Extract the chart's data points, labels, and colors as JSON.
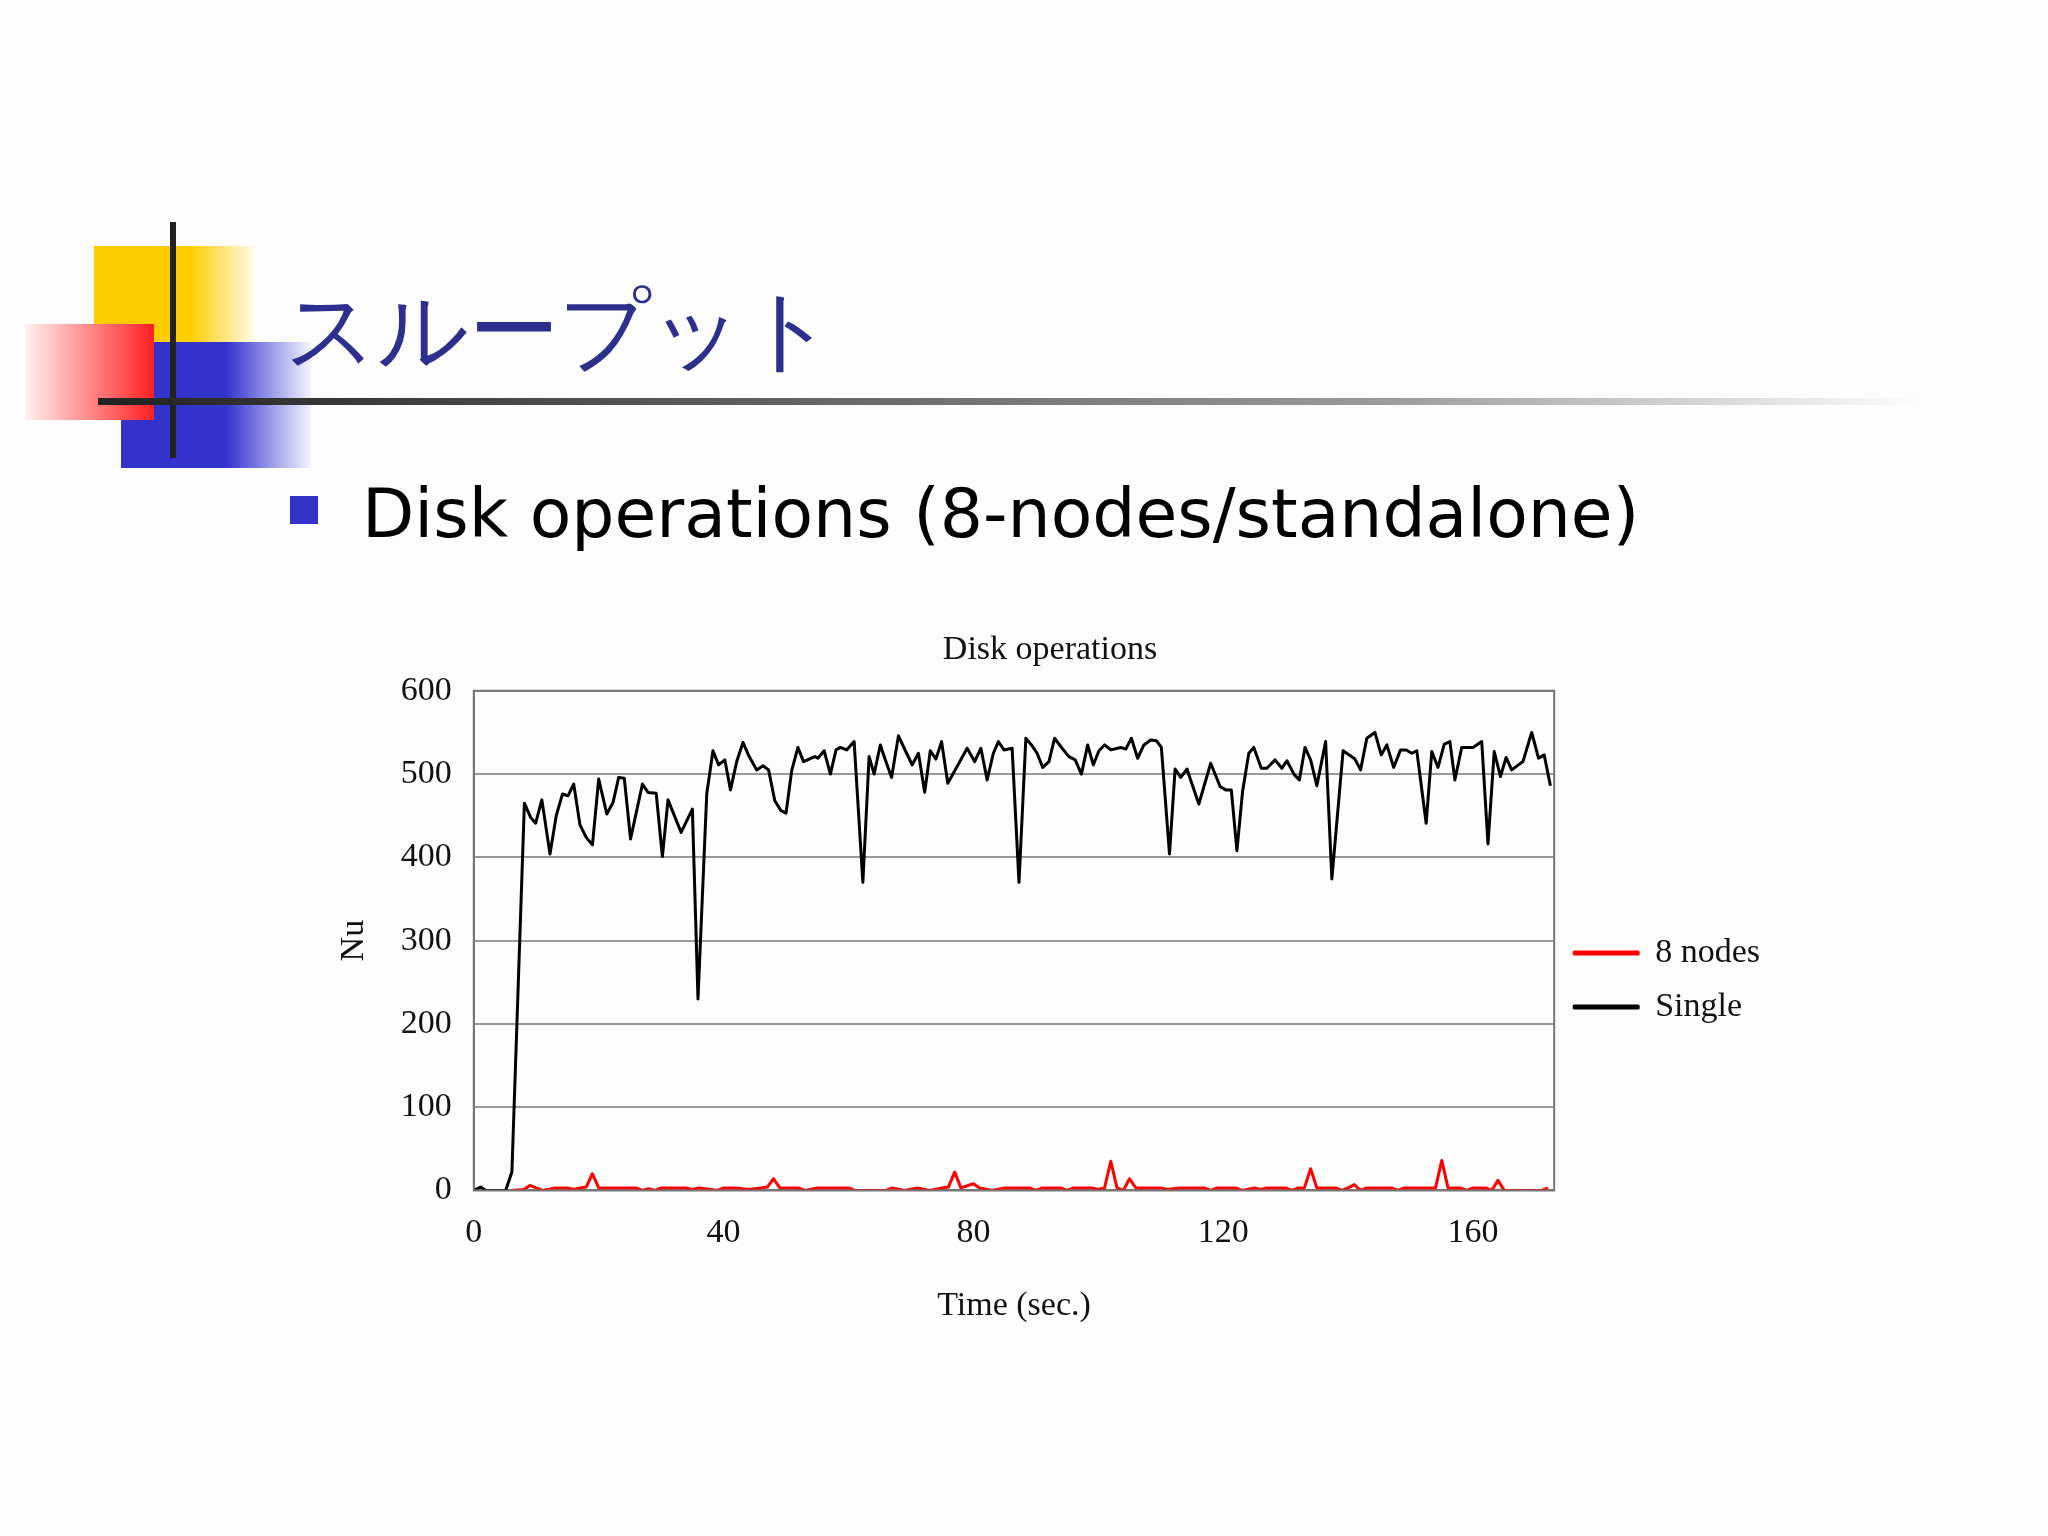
{
  "chart_data": {
    "type": "line",
    "title": "スループット",
    "subtitle": "Disk operations (8-nodes/standalone)",
    "annotations": [
      "Disk operations"
    ],
    "xlabel": "Time (sec.)",
    "ylabel": "Nu",
    "xlim": [
      0,
      173
    ],
    "xticks": [
      0,
      40,
      80,
      120,
      160
    ],
    "ylim": [
      0,
      600
    ],
    "yticks": [
      0,
      100,
      200,
      300,
      400,
      500,
      600
    ],
    "grid": "y",
    "legend": "right",
    "marker": "none",
    "line_style": "solid",
    "series": [
      {
        "name": "8 nodes",
        "color": "#ff0000",
        "x": [
          6,
          8,
          9,
          10,
          11,
          13,
          15,
          16,
          17,
          18,
          19,
          20,
          24,
          26,
          27,
          28,
          29,
          30,
          34,
          35,
          36,
          38,
          39,
          40,
          42,
          44,
          46,
          47,
          48,
          49,
          52,
          53,
          55,
          60,
          61,
          66,
          67,
          69,
          71,
          73,
          75,
          76,
          77,
          78,
          80,
          81,
          83,
          85,
          89,
          90,
          91,
          94,
          95,
          96,
          99,
          100,
          101,
          102,
          103,
          104,
          105,
          106,
          110,
          111,
          113,
          117,
          118,
          119,
          122,
          123,
          125,
          126,
          127,
          130,
          131,
          132,
          133,
          134,
          135,
          138,
          139,
          140,
          141,
          142,
          143,
          147,
          148,
          149,
          153,
          154,
          155,
          156,
          158,
          159,
          160,
          162,
          163,
          164,
          165,
          171,
          172
        ],
        "values": [
          0,
          1,
          6,
          3,
          0,
          3,
          3,
          1,
          3,
          4,
          20,
          3,
          3,
          3,
          0,
          2,
          0,
          3,
          3,
          1,
          3,
          1,
          0,
          3,
          3,
          1,
          3,
          4,
          14,
          3,
          3,
          0,
          3,
          3,
          0,
          0,
          3,
          0,
          3,
          0,
          3,
          4,
          22,
          3,
          8,
          3,
          0,
          3,
          3,
          0,
          3,
          3,
          0,
          3,
          3,
          1,
          3,
          35,
          3,
          0,
          14,
          3,
          3,
          1,
          3,
          3,
          0,
          3,
          3,
          0,
          3,
          1,
          3,
          3,
          0,
          3,
          3,
          26,
          3,
          3,
          0,
          3,
          7,
          0,
          3,
          3,
          0,
          3,
          3,
          3,
          36,
          3,
          3,
          0,
          3,
          3,
          0,
          12,
          0,
          0,
          3
        ]
      },
      {
        "name": "Single",
        "color": "#000000",
        "x": [
          0,
          1.1,
          1.9,
          5.1,
          6.1,
          8.1,
          9.1,
          9.9,
          10.9,
          12.2,
          13.2,
          14.2,
          15.1,
          16,
          17,
          18,
          19,
          20,
          21.3,
          22.3,
          23.2,
          24.1,
          25.1,
          27,
          27.9,
          29.2,
          30.2,
          31.1,
          33.2,
          35,
          35.9,
          37.3,
          38.3,
          39.2,
          40.2,
          41.1,
          42.1,
          43.1,
          44.1,
          45.3,
          46.3,
          47.2,
          48.2,
          49.2,
          50,
          50.9,
          51.9,
          52.8,
          54.6,
          55.1,
          56.1,
          57.1,
          58,
          58.7,
          59.7,
          60.9,
          62.3,
          63.3,
          64.1,
          65.1,
          65.9,
          66.9,
          68,
          69.3,
          70.2,
          71.2,
          72.2,
          73.1,
          74,
          74.9,
          75.9,
          77.3,
          79,
          80.2,
          81.2,
          82.2,
          83.2,
          84,
          84.9,
          86.2,
          87.3,
          88.4,
          89.3,
          90.2,
          91.1,
          92.1,
          93,
          94.2,
          95.3,
          96.3,
          97.3,
          98.3,
          99.2,
          100.1,
          101,
          102,
          103.6,
          104.4,
          105.3,
          106.3,
          107.3,
          108.4,
          109.3,
          110.1,
          111.4,
          112.3,
          113.2,
          114.2,
          115.1,
          116.1,
          118,
          119.5,
          120.4,
          121.3,
          122.2,
          123.1,
          124.1,
          124.9,
          126.1,
          127,
          128.3,
          129.4,
          130.2,
          131.4,
          132.2,
          133.1,
          134,
          135,
          136.4,
          137.4,
          139.2,
          141.1,
          142,
          143,
          144.3,
          145.3,
          146.2,
          147.3,
          148.4,
          149.3,
          150.2,
          151,
          152.5,
          153.4,
          154.4,
          155.4,
          156.3,
          157.1,
          158.2,
          160,
          161.4,
          162.4,
          163.4,
          164.4,
          165.3,
          166.2,
          168,
          169.4,
          170.5,
          171.4,
          172.4
        ],
        "values": [
          0,
          4,
          0,
          0,
          22,
          465,
          448,
          441,
          469,
          404,
          450,
          476,
          474,
          488,
          439,
          424,
          415,
          494,
          452,
          466,
          496,
          495,
          422,
          488,
          478,
          477,
          401,
          469,
          430,
          458,
          230,
          476,
          528,
          511,
          517,
          481,
          515,
          538,
          521,
          505,
          510,
          505,
          468,
          456,
          453,
          504,
          532,
          515,
          521,
          519,
          528,
          500,
          529,
          532,
          529,
          539,
          370,
          521,
          500,
          535,
          517,
          496,
          546,
          525,
          511,
          525,
          478,
          528,
          518,
          539,
          489,
          508,
          531,
          515,
          531,
          493,
          525,
          539,
          529,
          531,
          370,
          543,
          535,
          525,
          508,
          515,
          543,
          531,
          521,
          517,
          500,
          535,
          511,
          528,
          535,
          529,
          532,
          530,
          543,
          519,
          535,
          541,
          540,
          532,
          404,
          506,
          496,
          506,
          486,
          464,
          513,
          485,
          481,
          481,
          408,
          479,
          525,
          532,
          507,
          507,
          517,
          507,
          516,
          499,
          493,
          532,
          517,
          486,
          539,
          374,
          528,
          518,
          505,
          543,
          550,
          523,
          535,
          508,
          529,
          529,
          525,
          528,
          441,
          527,
          508,
          536,
          539,
          493,
          532,
          532,
          539,
          416,
          527,
          497,
          520,
          505,
          515,
          550,
          519,
          523,
          486
        ]
      }
    ]
  }
}
